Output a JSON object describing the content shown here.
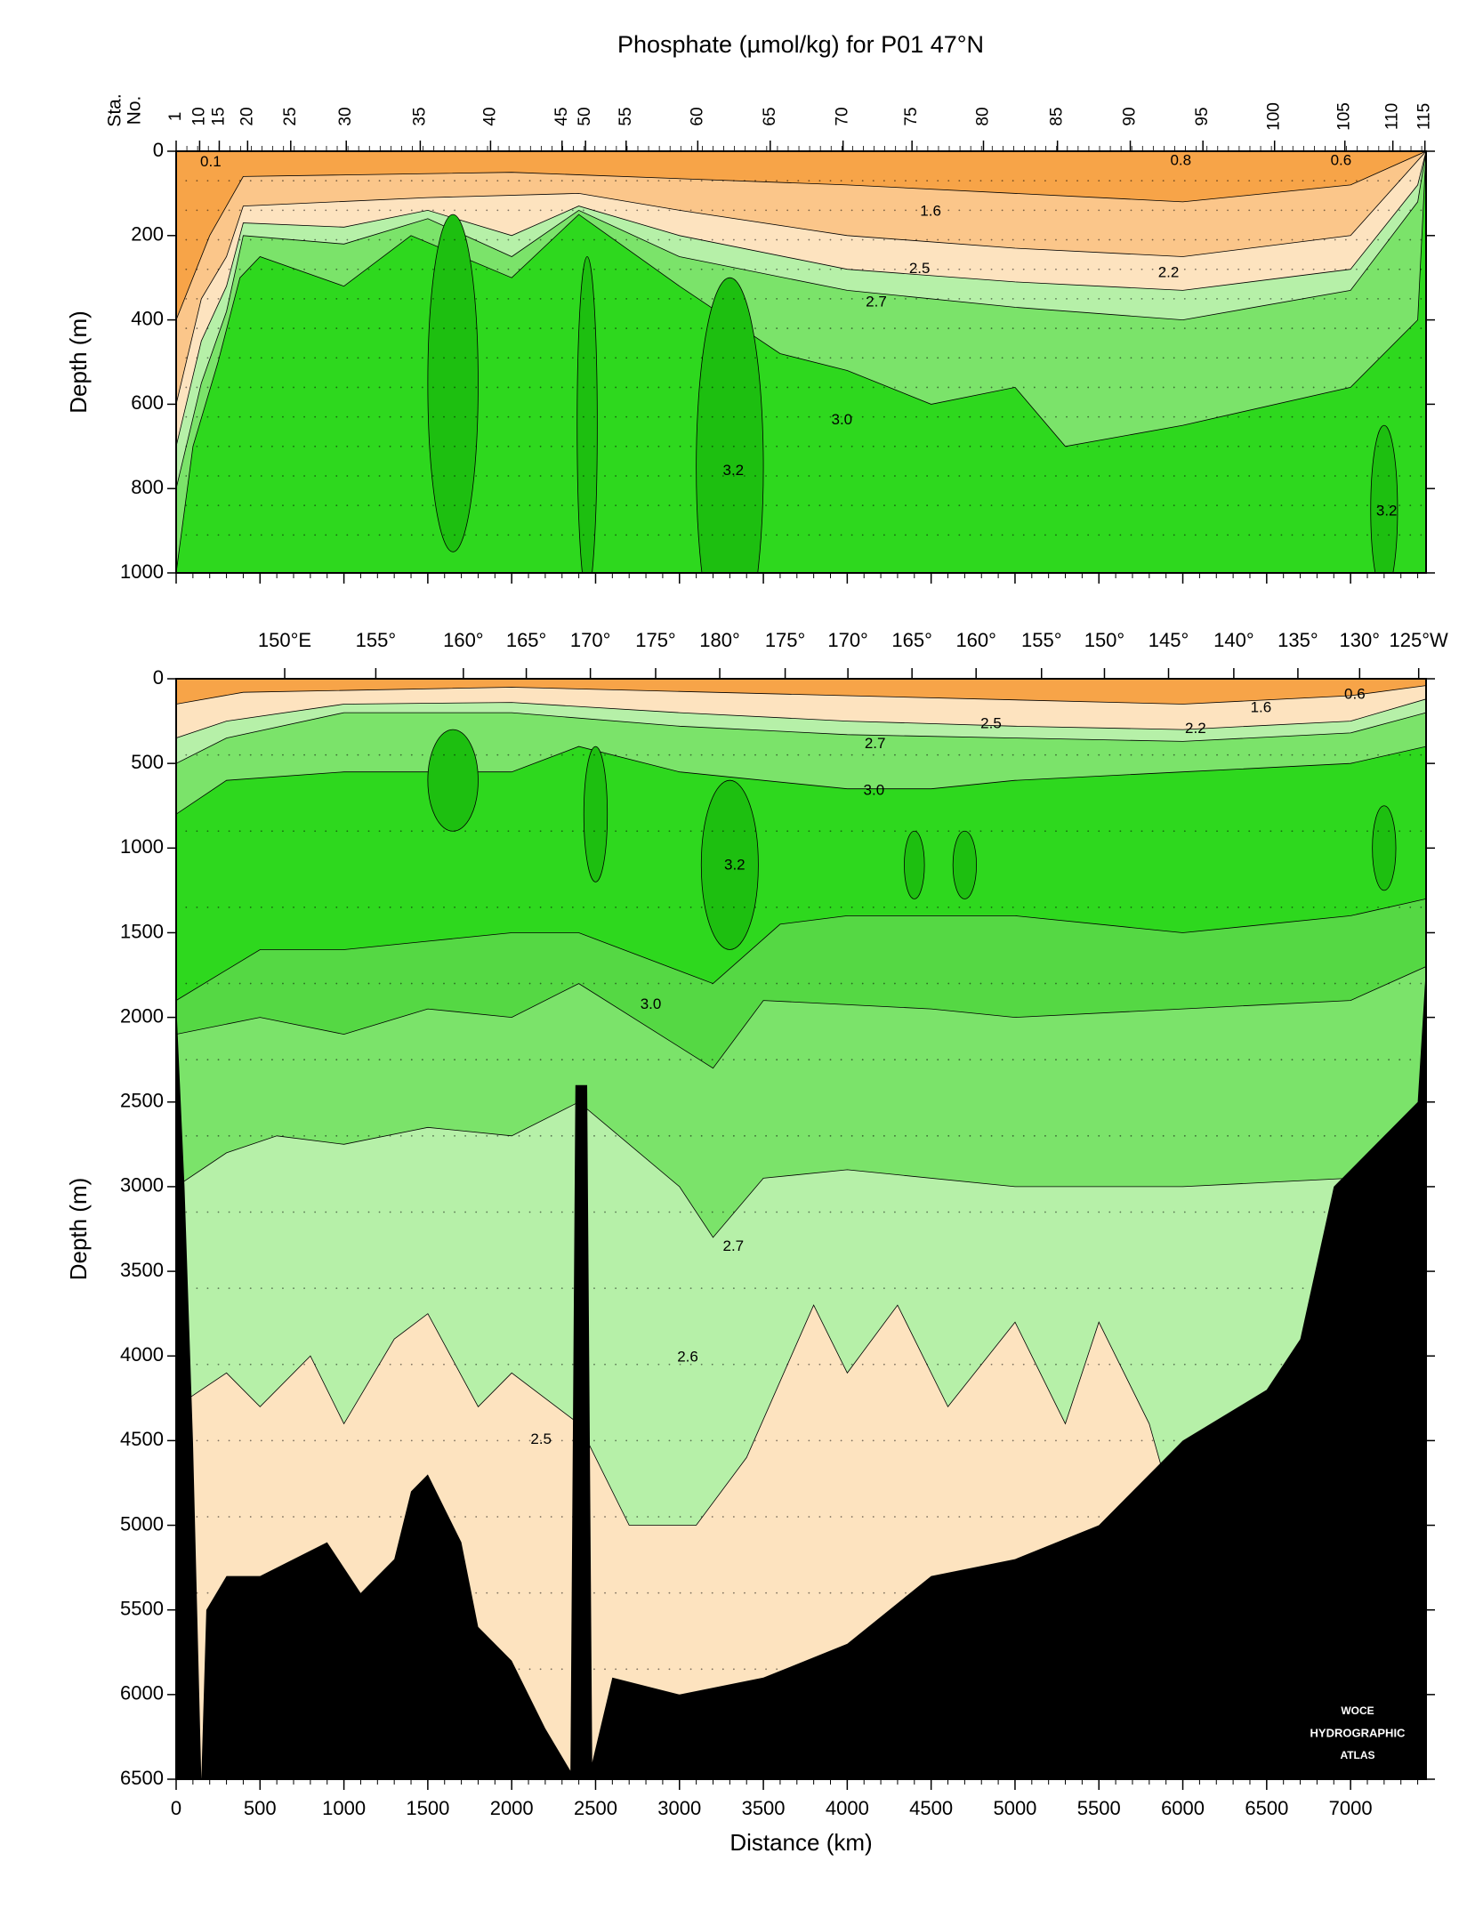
{
  "chart_data": [
    {
      "type": "contour",
      "title": "Phosphate (µmol/kg) for P01 47°N",
      "ylabel": "Depth (m)",
      "station_label": [
        "Sta.",
        "No."
      ],
      "station_numbers": [
        1,
        10,
        15,
        20,
        25,
        30,
        35,
        40,
        45,
        50,
        55,
        60,
        65,
        70,
        75,
        80,
        85,
        90,
        95,
        100,
        105,
        110,
        115
      ],
      "station_x": [
        0,
        140,
        257,
        426,
        683,
        1014,
        1455,
        1874,
        2300,
        2440,
        2682,
        3109,
        3541,
        3975,
        4386,
        4812,
        5253,
        5687,
        6120,
        6547,
        6966,
        7252,
        7443
      ],
      "xlim": [
        0,
        7450
      ],
      "ylim": [
        0,
        1000
      ],
      "y_inverted": true,
      "yticks": [
        0,
        200,
        400,
        600,
        800,
        1000
      ],
      "contour_labels": [
        {
          "value": 0.1,
          "x": 206,
          "depth": 26
        },
        {
          "value": 0.8,
          "x": 5988,
          "depth": 23
        },
        {
          "value": 0.6,
          "x": 6943,
          "depth": 23
        },
        {
          "value": 1.6,
          "x": 4497,
          "depth": 143
        },
        {
          "value": 2.5,
          "x": 4431,
          "depth": 280
        },
        {
          "value": 2.2,
          "x": 5915,
          "depth": 289
        },
        {
          "value": 2.7,
          "x": 4173,
          "depth": 359
        },
        {
          "value": {
            "value": 3,
            "label": "3.0"
          },
          "x": 3968,
          "depth": 638
        },
        {
          "value": 3.2,
          "x": 3321,
          "depth": 758
        },
        {
          "value": 3.2,
          "x": 7215,
          "depth": 854
        }
      ]
    },
    {
      "type": "contour",
      "ylabel": "Depth (m)",
      "xlabel": "Distance (km)",
      "xlim": [
        0,
        7450
      ],
      "xticks": [
        0,
        500,
        1000,
        1500,
        2000,
        2500,
        3000,
        3500,
        4000,
        4500,
        5000,
        5500,
        6000,
        6500,
        7000
      ],
      "longitude_ticks": [
        {
          "value": 647,
          "label": "150°E"
        },
        {
          "value": 1190,
          "label": "155°"
        },
        {
          "value": 1712,
          "label": "160°"
        },
        {
          "value": 2087,
          "label": "165°"
        },
        {
          "value": 2469,
          "label": "170°"
        },
        {
          "value": 2858,
          "label": "175°"
        },
        {
          "value": 3240,
          "label": "180°"
        },
        {
          "value": 3630,
          "label": "175°"
        },
        {
          "value": 4004,
          "label": "170°"
        },
        {
          "value": 4386,
          "label": "165°"
        },
        {
          "value": 4768,
          "label": "160°"
        },
        {
          "value": 5158,
          "label": "155°"
        },
        {
          "value": 5533,
          "label": "150°"
        },
        {
          "value": 5915,
          "label": "145°"
        },
        {
          "value": 6304,
          "label": "140°"
        },
        {
          "value": 6686,
          "label": "135°"
        },
        {
          "value": 7054,
          "label": "130°"
        },
        {
          "value": 7406,
          "label": "125°W"
        }
      ],
      "ylim": [
        0,
        6500
      ],
      "y_inverted": true,
      "yticks": [
        0,
        500,
        1000,
        1500,
        2000,
        2500,
        3000,
        3500,
        4000,
        4500,
        5000,
        5500,
        6000,
        6500
      ],
      "contour_labels": [
        {
          "value": 0.6,
          "x": 7025,
          "depth": 94
        },
        {
          "value": 1.6,
          "x": 6466,
          "depth": 174
        },
        {
          "value": 2.5,
          "x": 4857,
          "depth": 269
        },
        {
          "value": 2.2,
          "x": 6076,
          "depth": 298
        },
        {
          "value": 2.7,
          "x": 4166,
          "depth": 385
        },
        {
          "value": {
            "value": 3,
            "label": "3.0"
          },
          "x": 4159,
          "depth": 661
        },
        {
          "value": 3.2,
          "x": 3329,
          "depth": 1104
        },
        {
          "value": {
            "value": 3,
            "label": "3.0"
          },
          "x": 2829,
          "depth": 1925
        },
        {
          "value": 2.7,
          "x": 3321,
          "depth": 3356
        },
        {
          "value": 2.6,
          "x": 3049,
          "depth": 4009
        },
        {
          "value": 2.5,
          "x": 2175,
          "depth": 4495
        }
      ],
      "annotation": [
        "WOCE",
        "HYDROGRAPHIC",
        "ATLAS"
      ]
    }
  ]
}
